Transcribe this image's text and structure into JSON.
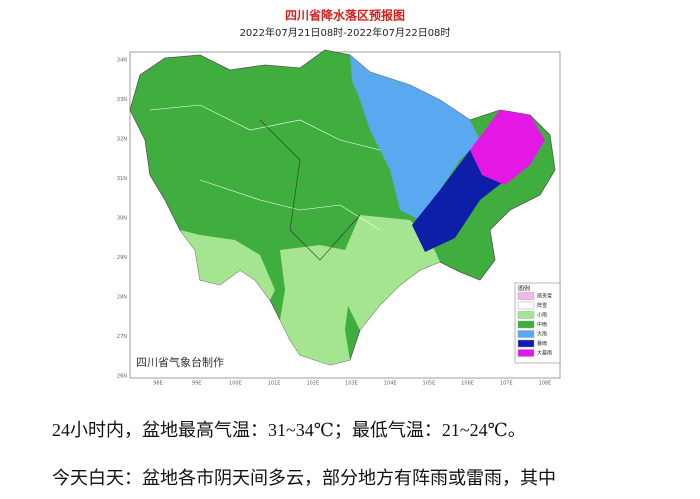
{
  "map": {
    "title": "四川省降水落区预报图",
    "subtitle": "2022年07月21日08时-2022年07月22日08时",
    "lat_labels": [
      "34N",
      "33N",
      "32N",
      "31N",
      "30N",
      "29N",
      "28N",
      "27N",
      "26N"
    ],
    "lon_labels": [
      "98E",
      "99E",
      "100E",
      "101E",
      "102E",
      "103E",
      "104E",
      "105E",
      "106E",
      "107E",
      "108E"
    ],
    "watermark": "四川省气象台制作",
    "legend": {
      "title": "图例",
      "items": [
        {
          "label": "雨夹雪",
          "color": "#f2b8e8"
        },
        {
          "label": "阵雪",
          "color": "#ffffff"
        },
        {
          "label": "小雨",
          "color": "#a6e58f"
        },
        {
          "label": "中雨",
          "color": "#3fae3f"
        },
        {
          "label": "大雨",
          "color": "#5aa9f0"
        },
        {
          "label": "暴雨",
          "color": "#0d1fa8"
        },
        {
          "label": "大暴雨",
          "color": "#e418e4"
        }
      ]
    }
  },
  "text": {
    "paragraphs": [
      "24小时内，盆地最高气温：31~34℃；最低气温：21~24℃。",
      "今天白天：盆地各市阴天间多云，部分地方有阵雨或雷雨，其中"
    ]
  }
}
